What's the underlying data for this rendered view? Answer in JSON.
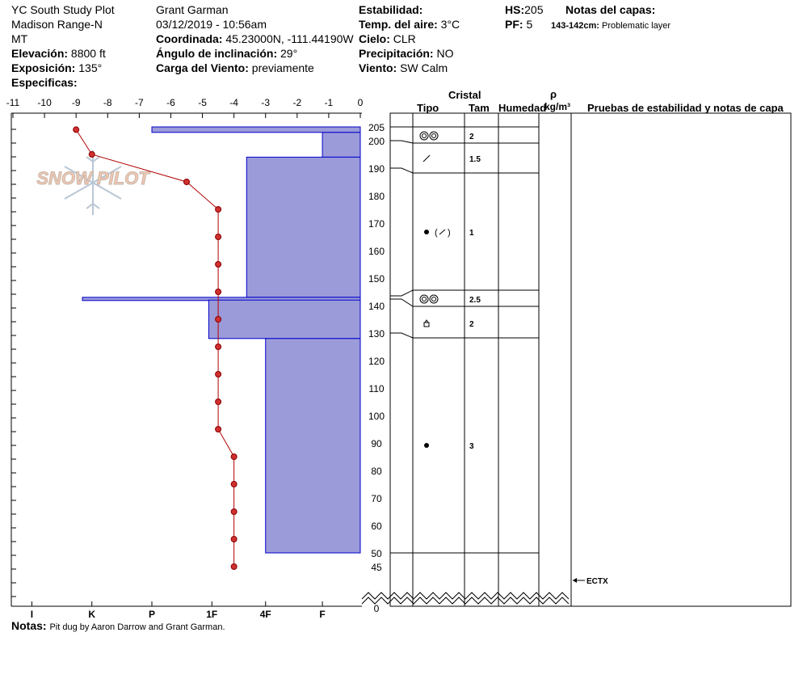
{
  "header": {
    "site": "YC South Study Plot",
    "range": "Madison Range-N",
    "state": "MT",
    "elevation_label": "Elevación:",
    "elevation_value": "8800 ft",
    "aspect_label": "Exposición:",
    "aspect_value": "135°",
    "specifics_label": "Especificas:",
    "observer": "Grant Garman",
    "datetime": "03/12/2019 - 10:56am",
    "coord_label": "Coordinada:",
    "coord_value": "45.23000N, -111.44190W",
    "slope_label": "Ángulo de inclinación:",
    "slope_value": "29°",
    "wind_load_label": "Carga del Viento:",
    "wind_load_value": "previamente",
    "stability_label": "Estabilidad:",
    "air_temp_label": "Temp. del aire:",
    "air_temp_value": "3°C",
    "sky_label": "Cielo:",
    "sky_value": "CLR",
    "precip_label": "Precipitación:",
    "precip_value": "NO",
    "wind_label": "Viento:",
    "wind_value": "SW Calm",
    "hs_label": "HS:",
    "hs_value": "205",
    "pf_label": "PF:",
    "pf_value": "5",
    "layer_notes_label": "Notas del capas:",
    "layer_note_range": "143-142cm:",
    "layer_note_text": "Problematic layer"
  },
  "table_headers": {
    "crystal": "Cristal",
    "type": "Tipo",
    "size": "Tam",
    "moisture": "Humedad",
    "rho": "ρ",
    "density_unit": "kg/m³",
    "tests": "Pruebas de estabilidad y notas de capa"
  },
  "watermark": "SNOW PILOT",
  "notes": {
    "label": "Notas:",
    "text": "Pit dug by Aaron Darrow and Grant Garman."
  },
  "chart_data": {
    "type": "snow-profile",
    "temperature_axis": {
      "range": [
        -11,
        0
      ],
      "ticks": [
        -11,
        -10,
        -9,
        -8,
        -7,
        -6,
        -5,
        -4,
        -3,
        -2,
        -1,
        0
      ]
    },
    "height_axis": {
      "range": [
        0,
        205
      ],
      "ticks": [
        205,
        200,
        190,
        180,
        170,
        160,
        150,
        140,
        130,
        120,
        110,
        100,
        90,
        80,
        70,
        60,
        50,
        45,
        0
      ]
    },
    "hardness_axis": {
      "ticks": [
        "I",
        "K",
        "P",
        "1F",
        "4F",
        "F"
      ],
      "temperature_equivalents": [
        -10.4,
        -8.5,
        -6.6,
        -4.7,
        -3.0,
        -1.2
      ]
    },
    "temperature_profile": [
      {
        "height": 204,
        "temp": -9.0
      },
      {
        "height": 195,
        "temp": -8.5
      },
      {
        "height": 185,
        "temp": -5.5
      },
      {
        "height": 175,
        "temp": -4.5
      },
      {
        "height": 165,
        "temp": -4.5
      },
      {
        "height": 155,
        "temp": -4.5
      },
      {
        "height": 145,
        "temp": -4.5
      },
      {
        "height": 135,
        "temp": -4.5
      },
      {
        "height": 125,
        "temp": -4.5
      },
      {
        "height": 115,
        "temp": -4.5
      },
      {
        "height": 105,
        "temp": -4.5
      },
      {
        "height": 95,
        "temp": -4.5
      },
      {
        "height": 85,
        "temp": -4.0
      },
      {
        "height": 75,
        "temp": -4.0
      },
      {
        "height": 65,
        "temp": -4.0
      },
      {
        "height": 55,
        "temp": -4.0
      },
      {
        "height": 45,
        "temp": -4.0
      }
    ],
    "hardness_layers": [
      {
        "top": 205,
        "bottom": 203,
        "hardness_temp": -6.6
      },
      {
        "top": 203,
        "bottom": 194,
        "hardness_temp": -1.2
      },
      {
        "top": 194,
        "bottom": 143,
        "hardness_temp": -3.6
      },
      {
        "top": 143,
        "bottom": 142,
        "hardness_temp": -8.8
      },
      {
        "top": 142,
        "bottom": 128,
        "hardness_temp": -4.8
      },
      {
        "top": 128,
        "bottom": 50,
        "hardness_temp": -3.0
      }
    ],
    "layers": [
      {
        "top": 205,
        "bottom": 200,
        "grain": "rounds",
        "size": "2"
      },
      {
        "top": 200,
        "bottom": 190,
        "grain": "decomposing",
        "size": "1.5"
      },
      {
        "top": 190,
        "bottom": 145,
        "grain": "rounded-decomposing",
        "size": "1"
      },
      {
        "top": 145,
        "bottom": 139,
        "grain": "rounds",
        "size": "2.5"
      },
      {
        "top": 139,
        "bottom": 128,
        "grain": "faceted",
        "size": "2"
      },
      {
        "top": 128,
        "bottom": 50,
        "grain": "round-dot",
        "size": "3"
      }
    ],
    "tests": [
      {
        "height": 45,
        "label": "ECTX"
      }
    ]
  }
}
